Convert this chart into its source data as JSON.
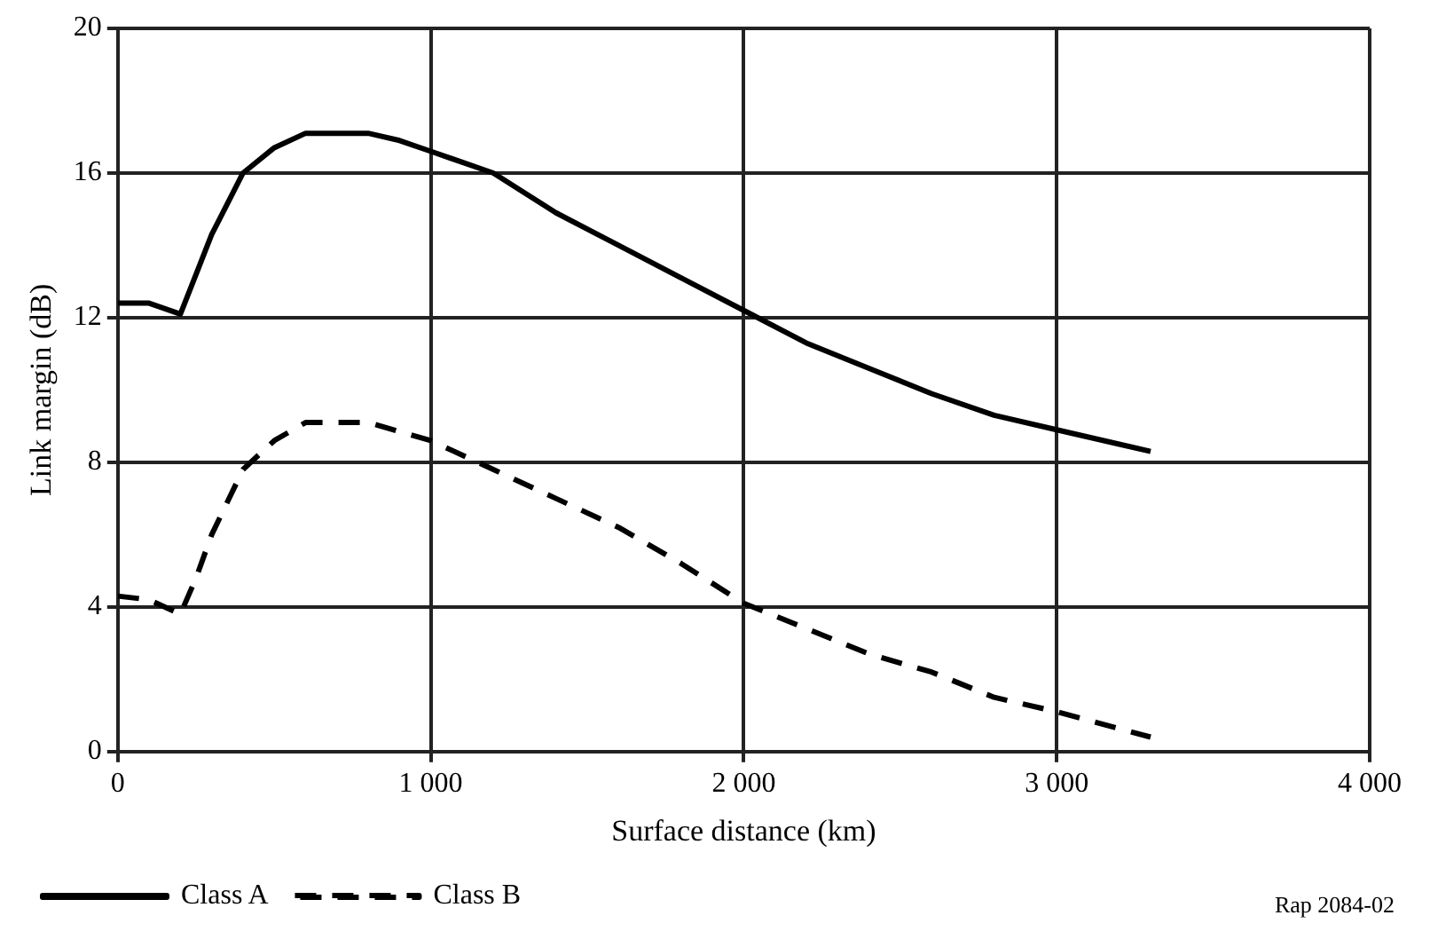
{
  "chart_data": {
    "type": "line",
    "xlabel": "Surface distance (km)",
    "ylabel": "Link margin (dB)",
    "xlim": [
      0,
      4000
    ],
    "xticks": [
      0,
      {
        "value": 1000,
        "label": "1 000"
      },
      {
        "value": 2000,
        "label": "2 000"
      },
      {
        "value": 3000,
        "label": "3 000"
      },
      {
        "value": 4000,
        "label": "4 000"
      }
    ],
    "ylim": [
      0,
      20
    ],
    "yticks": [
      0,
      4,
      8,
      12,
      16,
      20
    ],
    "grid": true,
    "legend": "bottom left",
    "marker": "none",
    "annotations": [
      "Rap 2084-02"
    ],
    "series": [
      {
        "name": "Class A",
        "color": "#000000",
        "line_style": "solid",
        "x": [
          0,
          100,
          200,
          250,
          300,
          400,
          500,
          600,
          800,
          900,
          1000,
          1200,
          1400,
          1600,
          1800,
          2000,
          2200,
          2400,
          2600,
          2800,
          3000,
          3300
        ],
        "values": [
          12.4,
          12.4,
          12.1,
          13.2,
          14.3,
          16,
          16.7,
          17.1,
          17.1,
          16.9,
          16.6,
          16,
          14.9,
          14,
          13.1,
          12.2,
          11.3,
          10.6,
          9.9,
          9.3,
          8.9,
          8.3
        ]
      },
      {
        "name": "Class B",
        "color": "#000000",
        "line_style": "dashed",
        "x": [
          0,
          100,
          200,
          250,
          300,
          400,
          500,
          600,
          800,
          1000,
          1100,
          1200,
          1400,
          1600,
          1800,
          2000,
          2200,
          2400,
          2600,
          2800,
          3000,
          3300
        ],
        "values": [
          4.3,
          4.2,
          3.8,
          4.8,
          6,
          7.8,
          8.6,
          9.1,
          9.1,
          8.6,
          8.2,
          7.8,
          7,
          6.2,
          5.2,
          4.1,
          3.4,
          2.7,
          2.2,
          1.5,
          1.1,
          0.4
        ]
      }
    ]
  }
}
